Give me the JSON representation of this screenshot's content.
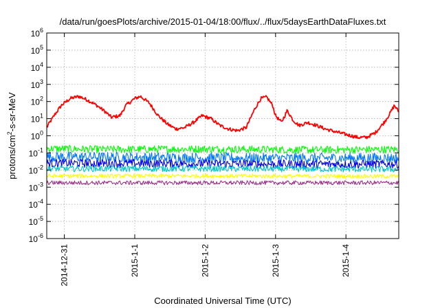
{
  "chart_data": {
    "type": "line",
    "title": "/data/run/goesPlots/archive/2015-01-04/18:00/flux/../flux/5daysEarthDataFluxes.txt",
    "xlabel": "Coordinated Universal Time (UTC)",
    "ylabel_parts": [
      "protons/cm",
      "2",
      "-s-sr-MeV"
    ],
    "y_scale": "log",
    "ylim": [
      1e-06,
      1000000.0
    ],
    "y_ticks": [
      {
        "base": "10",
        "exp": "-6",
        "value": 1e-06
      },
      {
        "base": "10",
        "exp": "-5",
        "value": 1e-05
      },
      {
        "base": "10",
        "exp": "-4",
        "value": 0.0001
      },
      {
        "base": "10",
        "exp": "-3",
        "value": 0.001
      },
      {
        "base": "10",
        "exp": "-2",
        "value": 0.01
      },
      {
        "base": "10",
        "exp": "-1",
        "value": 0.1
      },
      {
        "base": "10",
        "exp": "0",
        "value": 1
      },
      {
        "base": "10",
        "exp": "1",
        "value": 10
      },
      {
        "base": "10",
        "exp": "2",
        "value": 100
      },
      {
        "base": "10",
        "exp": "3",
        "value": 1000
      },
      {
        "base": "10",
        "exp": "4",
        "value": 10000
      },
      {
        "base": "10",
        "exp": "5",
        "value": 100000
      },
      {
        "base": "10",
        "exp": "6",
        "value": 1000000
      }
    ],
    "x_range": [
      "2014-12-30 18:00",
      "2015-01-04 18:00"
    ],
    "x_ticks": [
      {
        "label": "2014-12-31",
        "value": "2014-12-31 00:00"
      },
      {
        "label": "2015-1-1",
        "value": "2015-01-01 00:00"
      },
      {
        "label": "2015-1-2",
        "value": "2015-01-02 00:00"
      },
      {
        "label": "2015-1-3",
        "value": "2015-01-03 00:00"
      },
      {
        "label": "2015-1-4",
        "value": "2015-01-04 00:00"
      }
    ],
    "grid": true,
    "series": [
      {
        "color": "#ff0000",
        "noise": 0.1,
        "points": [
          [
            "2014-12-30 18:00",
            3
          ],
          [
            "2014-12-30 19:00",
            6
          ],
          [
            "2014-12-30 21:00",
            20
          ],
          [
            "2014-12-30 23:00",
            60
          ],
          [
            "2014-12-31 02:00",
            150
          ],
          [
            "2014-12-31 05:00",
            200
          ],
          [
            "2014-12-31 08:00",
            120
          ],
          [
            "2014-12-31 11:00",
            60
          ],
          [
            "2014-12-31 14:00",
            25
          ],
          [
            "2014-12-31 16:00",
            12
          ],
          [
            "2014-12-31 19:00",
            15
          ],
          [
            "2014-12-31 21:00",
            60
          ],
          [
            "2015-01-01 00:00",
            150
          ],
          [
            "2015-01-01 02:00",
            200
          ],
          [
            "2015-01-01 05:00",
            80
          ],
          [
            "2015-01-01 08:00",
            15
          ],
          [
            "2015-01-01 11:00",
            5
          ],
          [
            "2015-01-01 14:00",
            2.5
          ],
          [
            "2015-01-01 17:00",
            3
          ],
          [
            "2015-01-01 20:00",
            6
          ],
          [
            "2015-01-01 23:00",
            15
          ],
          [
            "2015-01-02 02:00",
            10
          ],
          [
            "2015-01-02 05:00",
            4
          ],
          [
            "2015-01-02 08:00",
            2.5
          ],
          [
            "2015-01-02 11:00",
            2
          ],
          [
            "2015-01-02 14:00",
            3
          ],
          [
            "2015-01-02 17:00",
            40
          ],
          [
            "2015-01-02 19:00",
            150
          ],
          [
            "2015-01-02 21:00",
            180
          ],
          [
            "2015-01-02 23:00",
            60
          ],
          [
            "2015-01-03 00:00",
            15
          ],
          [
            "2015-01-03 02:00",
            6
          ],
          [
            "2015-01-03 04:00",
            30
          ],
          [
            "2015-01-03 06:00",
            8
          ],
          [
            "2015-01-03 08:00",
            4
          ],
          [
            "2015-01-03 11:00",
            6
          ],
          [
            "2015-01-03 14:00",
            4
          ],
          [
            "2015-01-03 17:00",
            2.5
          ],
          [
            "2015-01-03 20:00",
            1.8
          ],
          [
            "2015-01-04 00:00",
            1.2
          ],
          [
            "2015-01-04 04:00",
            0.8
          ],
          [
            "2015-01-04 07:00",
            0.8
          ],
          [
            "2015-01-04 10:00",
            1.5
          ],
          [
            "2015-01-04 13:00",
            6
          ],
          [
            "2015-01-04 15:00",
            20
          ],
          [
            "2015-01-04 16:30",
            60
          ],
          [
            "2015-01-04 18:00",
            25
          ]
        ]
      },
      {
        "color": "#00ff00",
        "noise": 0.22,
        "points": [
          [
            "2014-12-30 18:00",
            0.18
          ],
          [
            "2014-12-31 12:00",
            0.16
          ],
          [
            "2015-01-02 00:00",
            0.17
          ],
          [
            "2015-01-03 12:00",
            0.15
          ],
          [
            "2015-01-04 18:00",
            0.16
          ]
        ]
      },
      {
        "color": "#0077ff",
        "noise": 0.3,
        "points": [
          [
            "2014-12-30 18:00",
            0.06
          ],
          [
            "2015-01-01 00:00",
            0.055
          ],
          [
            "2015-01-02 12:00",
            0.05
          ],
          [
            "2015-01-04 18:00",
            0.05
          ]
        ]
      },
      {
        "color": "#0000ee",
        "noise": 0.25,
        "points": [
          [
            "2014-12-30 18:00",
            0.025
          ],
          [
            "2015-01-01 12:00",
            0.024
          ],
          [
            "2015-01-03 00:00",
            0.022
          ],
          [
            "2015-01-04 18:00",
            0.022
          ]
        ]
      },
      {
        "color": "#00c8c8",
        "noise": 0.18,
        "points": [
          [
            "2014-12-30 18:00",
            0.012
          ],
          [
            "2015-01-02 00:00",
            0.012
          ],
          [
            "2015-01-04 18:00",
            0.011
          ]
        ]
      },
      {
        "color": "#ffff00",
        "noise": 0.12,
        "points": [
          [
            "2014-12-30 18:00",
            0.0045
          ],
          [
            "2015-01-02 00:00",
            0.0045
          ],
          [
            "2015-01-04 18:00",
            0.0043
          ]
        ]
      },
      {
        "color": "#993388",
        "noise": 0.12,
        "points": [
          [
            "2014-12-30 18:00",
            0.0018
          ],
          [
            "2015-01-02 00:00",
            0.0018
          ],
          [
            "2015-01-04 18:00",
            0.0018
          ]
        ]
      }
    ]
  }
}
